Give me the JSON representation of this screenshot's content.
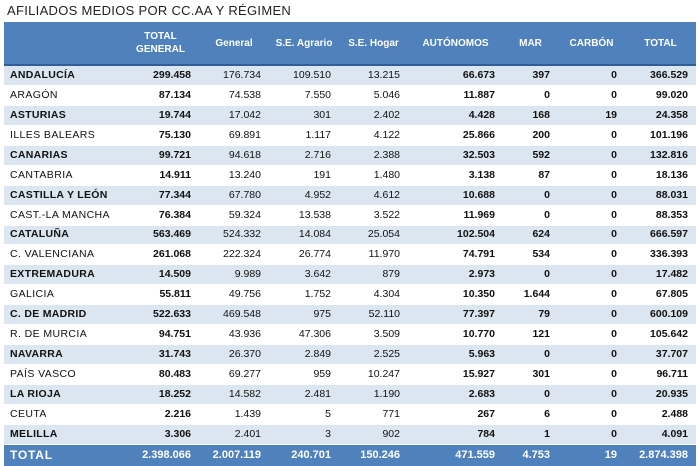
{
  "title": "AFILIADOS MEDIOS POR CC.AA Y RÉGIMEN",
  "headers": [
    "",
    "TOTAL GENERAL",
    "General",
    "S.E. Agrario",
    "S.E. Hogar",
    "AUTÓNOMOS",
    "MAR",
    "CARBÓN",
    "TOTAL"
  ],
  "rows": [
    [
      "ANDALUCÍA",
      "299.458",
      "176.734",
      "109.510",
      "13.215",
      "66.673",
      "397",
      "0",
      "366.529"
    ],
    [
      "ARAGÓN",
      "87.134",
      "74.538",
      "7.550",
      "5.046",
      "11.887",
      "0",
      "0",
      "99.020"
    ],
    [
      "ASTURIAS",
      "19.744",
      "17.042",
      "301",
      "2.402",
      "4.428",
      "168",
      "19",
      "24.358"
    ],
    [
      "ILLES BALEARS",
      "75.130",
      "69.891",
      "1.117",
      "4.122",
      "25.866",
      "200",
      "0",
      "101.196"
    ],
    [
      "CANARIAS",
      "99.721",
      "94.618",
      "2.716",
      "2.388",
      "32.503",
      "592",
      "0",
      "132.816"
    ],
    [
      "CANTABRIA",
      "14.911",
      "13.240",
      "191",
      "1.480",
      "3.138",
      "87",
      "0",
      "18.136"
    ],
    [
      "CASTILLA Y LEÓN",
      "77.344",
      "67.780",
      "4.952",
      "4.612",
      "10.688",
      "0",
      "0",
      "88.031"
    ],
    [
      "CAST.-LA MANCHA",
      "76.384",
      "59.324",
      "13.538",
      "3.522",
      "11.969",
      "0",
      "0",
      "88.353"
    ],
    [
      "CATALUÑA",
      "563.469",
      "524.332",
      "14.084",
      "25.054",
      "102.504",
      "624",
      "0",
      "666.597"
    ],
    [
      "C. VALENCIANA",
      "261.068",
      "222.324",
      "26.774",
      "11.970",
      "74.791",
      "534",
      "0",
      "336.393"
    ],
    [
      "EXTREMADURA",
      "14.509",
      "9.989",
      "3.642",
      "879",
      "2.973",
      "0",
      "0",
      "17.482"
    ],
    [
      "GALICIA",
      "55.811",
      "49.756",
      "1.752",
      "4.304",
      "10.350",
      "1.644",
      "0",
      "67.805"
    ],
    [
      "C. DE MADRID",
      "522.633",
      "469.548",
      "975",
      "52.110",
      "77.397",
      "79",
      "0",
      "600.109"
    ],
    [
      "R. DE MURCIA",
      "94.751",
      "43.936",
      "47.306",
      "3.509",
      "10.770",
      "121",
      "0",
      "105.642"
    ],
    [
      "NAVARRA",
      "31.743",
      "26.370",
      "2.849",
      "2.525",
      "5.963",
      "0",
      "0",
      "37.707"
    ],
    [
      "PAÍS VASCO",
      "80.483",
      "69.277",
      "959",
      "10.247",
      "15.927",
      "301",
      "0",
      "96.711"
    ],
    [
      "LA RIOJA",
      "18.252",
      "14.582",
      "2.481",
      "1.190",
      "2.683",
      "0",
      "0",
      "20.935"
    ],
    [
      "CEUTA",
      "2.216",
      "1.439",
      "5",
      "771",
      "267",
      "6",
      "0",
      "2.488"
    ],
    [
      "MELILLA",
      "3.306",
      "2.401",
      "3",
      "902",
      "784",
      "1",
      "0",
      "4.091"
    ]
  ],
  "total_row": [
    "TOTAL",
    "2.398.066",
    "2.007.119",
    "240.701",
    "150.246",
    "471.559",
    "4.753",
    "19",
    "2.874.398"
  ],
  "colors": {
    "header_bg": "#4f81bd",
    "band_bg": "#dce6f1",
    "header_text": "#ffffff"
  }
}
